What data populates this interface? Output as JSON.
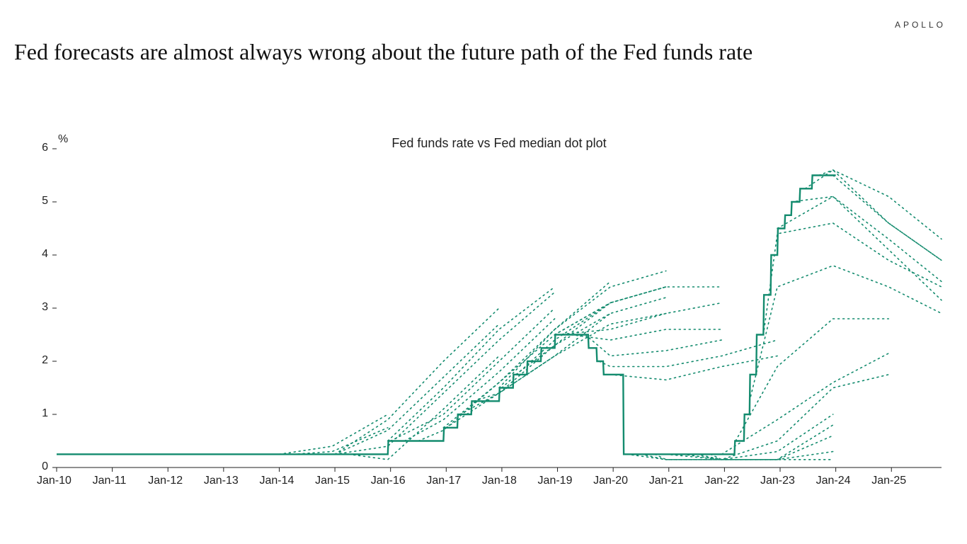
{
  "brand": "APOLLO",
  "title": "Fed forecasts are almost always wrong about the future path of the Fed funds rate",
  "chart": {
    "type": "line",
    "subtitle": "Fed funds rate vs Fed median dot plot",
    "y_unit": "%",
    "background_color": "#ffffff",
    "axis_color": "#222222",
    "tick_font_size": 16,
    "subtitle_font_size": 18,
    "title_font_size": 32,
    "x": {
      "min": 2010.0,
      "max": 2025.9,
      "tick_step_years": 1,
      "tick_format": "Jan-YY",
      "ticks": [
        "Jan-10",
        "Jan-11",
        "Jan-12",
        "Jan-13",
        "Jan-14",
        "Jan-15",
        "Jan-16",
        "Jan-17",
        "Jan-18",
        "Jan-19",
        "Jan-20",
        "Jan-21",
        "Jan-22",
        "Jan-23",
        "Jan-24",
        "Jan-25"
      ]
    },
    "y": {
      "min": 0,
      "max": 6,
      "tick_step": 1,
      "ticks": [
        0,
        1,
        2,
        3,
        4,
        5,
        6
      ]
    },
    "actual": {
      "color": "#138b6e",
      "line_width": 2.4,
      "style": "step",
      "points": [
        [
          2010.0,
          0.25
        ],
        [
          2015.95,
          0.25
        ],
        [
          2015.96,
          0.5
        ],
        [
          2016.95,
          0.5
        ],
        [
          2016.96,
          0.75
        ],
        [
          2017.2,
          0.75
        ],
        [
          2017.21,
          1.0
        ],
        [
          2017.45,
          1.0
        ],
        [
          2017.46,
          1.25
        ],
        [
          2017.95,
          1.25
        ],
        [
          2017.96,
          1.5
        ],
        [
          2018.2,
          1.5
        ],
        [
          2018.21,
          1.75
        ],
        [
          2018.45,
          1.75
        ],
        [
          2018.46,
          2.0
        ],
        [
          2018.7,
          2.0
        ],
        [
          2018.71,
          2.25
        ],
        [
          2018.95,
          2.25
        ],
        [
          2018.96,
          2.5
        ],
        [
          2019.55,
          2.5
        ],
        [
          2019.56,
          2.25
        ],
        [
          2019.7,
          2.25
        ],
        [
          2019.71,
          2.0
        ],
        [
          2019.82,
          2.0
        ],
        [
          2019.83,
          1.75
        ],
        [
          2020.18,
          1.75
        ],
        [
          2020.19,
          0.25
        ],
        [
          2022.18,
          0.25
        ],
        [
          2022.19,
          0.5
        ],
        [
          2022.35,
          0.5
        ],
        [
          2022.36,
          1.0
        ],
        [
          2022.45,
          1.0
        ],
        [
          2022.46,
          1.75
        ],
        [
          2022.57,
          1.75
        ],
        [
          2022.58,
          2.5
        ],
        [
          2022.7,
          2.5
        ],
        [
          2022.71,
          3.25
        ],
        [
          2022.83,
          3.25
        ],
        [
          2022.84,
          4.0
        ],
        [
          2022.95,
          4.0
        ],
        [
          2022.96,
          4.5
        ],
        [
          2023.08,
          4.5
        ],
        [
          2023.09,
          4.75
        ],
        [
          2023.2,
          4.75
        ],
        [
          2023.21,
          5.0
        ],
        [
          2023.35,
          5.0
        ],
        [
          2023.36,
          5.25
        ],
        [
          2023.57,
          5.25
        ],
        [
          2023.58,
          5.5
        ],
        [
          2024.0,
          5.5
        ]
      ]
    },
    "forecasts": {
      "color": "#138b6e",
      "line_width": 1.6,
      "dash": "2 5",
      "series": [
        [
          [
            2014.0,
            0.25
          ],
          [
            2014.95,
            0.4
          ],
          [
            2015.95,
            1.0
          ]
        ],
        [
          [
            2014.25,
            0.25
          ],
          [
            2014.95,
            0.3
          ],
          [
            2015.95,
            0.75
          ]
        ],
        [
          [
            2015.0,
            0.25
          ],
          [
            2015.95,
            0.9
          ],
          [
            2016.95,
            2.0
          ],
          [
            2017.95,
            3.0
          ]
        ],
        [
          [
            2015.0,
            0.25
          ],
          [
            2015.95,
            0.7
          ],
          [
            2016.95,
            1.7
          ],
          [
            2017.95,
            2.7
          ]
        ],
        [
          [
            2015.0,
            0.25
          ],
          [
            2015.95,
            0.4
          ],
          [
            2016.95,
            1.4
          ],
          [
            2017.95,
            2.4
          ],
          [
            2018.95,
            3.3
          ]
        ],
        [
          [
            2015.25,
            0.25
          ],
          [
            2015.95,
            0.15
          ],
          [
            2016.95,
            1.1
          ],
          [
            2017.95,
            2.1
          ]
        ],
        [
          [
            2015.95,
            0.5
          ],
          [
            2016.95,
            1.5
          ],
          [
            2017.95,
            2.6
          ],
          [
            2018.95,
            3.4
          ]
        ],
        [
          [
            2016.0,
            0.5
          ],
          [
            2016.95,
            1.0
          ],
          [
            2017.95,
            2.0
          ],
          [
            2018.95,
            3.0
          ]
        ],
        [
          [
            2016.25,
            0.5
          ],
          [
            2016.95,
            0.9
          ],
          [
            2017.95,
            1.8
          ],
          [
            2018.95,
            2.8
          ]
        ],
        [
          [
            2016.5,
            0.5
          ],
          [
            2016.95,
            0.7
          ],
          [
            2017.95,
            1.6
          ],
          [
            2018.95,
            2.5
          ],
          [
            2019.95,
            3.1
          ]
        ],
        [
          [
            2016.95,
            0.75
          ],
          [
            2017.95,
            1.6
          ],
          [
            2018.95,
            2.6
          ],
          [
            2019.95,
            3.5
          ]
        ],
        [
          [
            2017.0,
            0.75
          ],
          [
            2017.95,
            1.4
          ],
          [
            2018.95,
            2.3
          ],
          [
            2019.95,
            3.1
          ],
          [
            2020.95,
            3.4
          ]
        ],
        [
          [
            2017.25,
            1.0
          ],
          [
            2017.95,
            1.4
          ],
          [
            2018.95,
            2.1
          ],
          [
            2019.95,
            2.9
          ]
        ],
        [
          [
            2017.5,
            1.25
          ],
          [
            2017.95,
            1.4
          ],
          [
            2018.95,
            2.1
          ],
          [
            2019.95,
            2.7
          ],
          [
            2020.95,
            2.9
          ]
        ],
        [
          [
            2017.95,
            1.5
          ],
          [
            2018.95,
            2.6
          ],
          [
            2019.95,
            3.4
          ],
          [
            2020.95,
            3.7
          ]
        ],
        [
          [
            2018.0,
            1.5
          ],
          [
            2018.95,
            2.4
          ],
          [
            2019.95,
            3.1
          ],
          [
            2020.95,
            3.4
          ]
        ],
        [
          [
            2018.25,
            1.75
          ],
          [
            2018.95,
            2.3
          ],
          [
            2019.95,
            2.9
          ],
          [
            2020.95,
            3.2
          ]
        ],
        [
          [
            2018.95,
            2.5
          ],
          [
            2019.95,
            3.1
          ],
          [
            2020.95,
            3.4
          ],
          [
            2021.95,
            3.4
          ]
        ],
        [
          [
            2019.0,
            2.5
          ],
          [
            2019.95,
            2.6
          ],
          [
            2020.95,
            2.9
          ],
          [
            2021.95,
            3.1
          ]
        ],
        [
          [
            2019.25,
            2.5
          ],
          [
            2019.95,
            2.4
          ],
          [
            2020.95,
            2.6
          ],
          [
            2021.95,
            2.6
          ]
        ],
        [
          [
            2019.5,
            2.5
          ],
          [
            2019.95,
            2.1
          ],
          [
            2020.95,
            2.2
          ],
          [
            2021.95,
            2.4
          ]
        ],
        [
          [
            2019.75,
            2.0
          ],
          [
            2019.95,
            1.9
          ],
          [
            2020.95,
            1.9
          ],
          [
            2021.95,
            2.1
          ],
          [
            2022.95,
            2.4
          ]
        ],
        [
          [
            2019.95,
            1.75
          ],
          [
            2020.95,
            1.65
          ],
          [
            2021.95,
            1.9
          ],
          [
            2022.95,
            2.1
          ]
        ],
        [
          [
            2020.25,
            0.25
          ],
          [
            2020.95,
            0.15
          ],
          [
            2021.95,
            0.15
          ],
          [
            2022.95,
            0.15
          ]
        ],
        [
          [
            2020.5,
            0.25
          ],
          [
            2020.95,
            0.15
          ],
          [
            2021.95,
            0.15
          ],
          [
            2022.95,
            0.15
          ],
          [
            2023.95,
            0.15
          ]
        ],
        [
          [
            2020.75,
            0.25
          ],
          [
            2020.95,
            0.15
          ],
          [
            2021.95,
            0.15
          ],
          [
            2022.95,
            0.15
          ],
          [
            2023.95,
            0.3
          ]
        ],
        [
          [
            2020.95,
            0.25
          ],
          [
            2021.95,
            0.15
          ],
          [
            2022.95,
            0.15
          ],
          [
            2023.95,
            0.6
          ]
        ],
        [
          [
            2021.25,
            0.25
          ],
          [
            2021.95,
            0.15
          ],
          [
            2022.95,
            0.15
          ],
          [
            2023.95,
            0.8
          ]
        ],
        [
          [
            2021.5,
            0.25
          ],
          [
            2021.95,
            0.15
          ],
          [
            2022.95,
            0.3
          ],
          [
            2023.95,
            1.0
          ]
        ],
        [
          [
            2021.75,
            0.25
          ],
          [
            2021.95,
            0.15
          ],
          [
            2022.95,
            0.5
          ],
          [
            2023.95,
            1.5
          ],
          [
            2024.95,
            1.75
          ]
        ],
        [
          [
            2021.95,
            0.25
          ],
          [
            2022.95,
            0.9
          ],
          [
            2023.95,
            1.6
          ],
          [
            2024.95,
            2.15
          ]
        ],
        [
          [
            2022.2,
            0.5
          ],
          [
            2022.95,
            1.9
          ],
          [
            2023.95,
            2.8
          ],
          [
            2024.95,
            2.8
          ]
        ],
        [
          [
            2022.45,
            1.25
          ],
          [
            2022.95,
            3.4
          ],
          [
            2023.95,
            3.8
          ],
          [
            2024.95,
            3.4
          ],
          [
            2025.9,
            2.9
          ]
        ],
        [
          [
            2022.7,
            2.5
          ],
          [
            2022.95,
            4.4
          ],
          [
            2023.95,
            4.6
          ],
          [
            2024.95,
            3.9
          ],
          [
            2025.9,
            3.4
          ]
        ],
        [
          [
            2022.95,
            4.5
          ],
          [
            2023.95,
            5.1
          ],
          [
            2024.95,
            4.1
          ],
          [
            2025.9,
            3.15
          ]
        ],
        [
          [
            2023.2,
            5.0
          ],
          [
            2023.95,
            5.1
          ],
          [
            2024.95,
            4.3
          ],
          [
            2025.9,
            3.5
          ]
        ],
        [
          [
            2023.45,
            5.25
          ],
          [
            2023.95,
            5.6
          ],
          [
            2024.95,
            4.6
          ],
          [
            2025.9,
            3.9
          ]
        ],
        [
          [
            2023.7,
            5.5
          ],
          [
            2023.95,
            5.6
          ],
          [
            2024.95,
            5.1
          ],
          [
            2025.9,
            4.3
          ]
        ],
        [
          [
            2023.95,
            5.5
          ],
          [
            2024.95,
            4.6
          ],
          [
            2025.9,
            3.9
          ]
        ]
      ]
    }
  }
}
